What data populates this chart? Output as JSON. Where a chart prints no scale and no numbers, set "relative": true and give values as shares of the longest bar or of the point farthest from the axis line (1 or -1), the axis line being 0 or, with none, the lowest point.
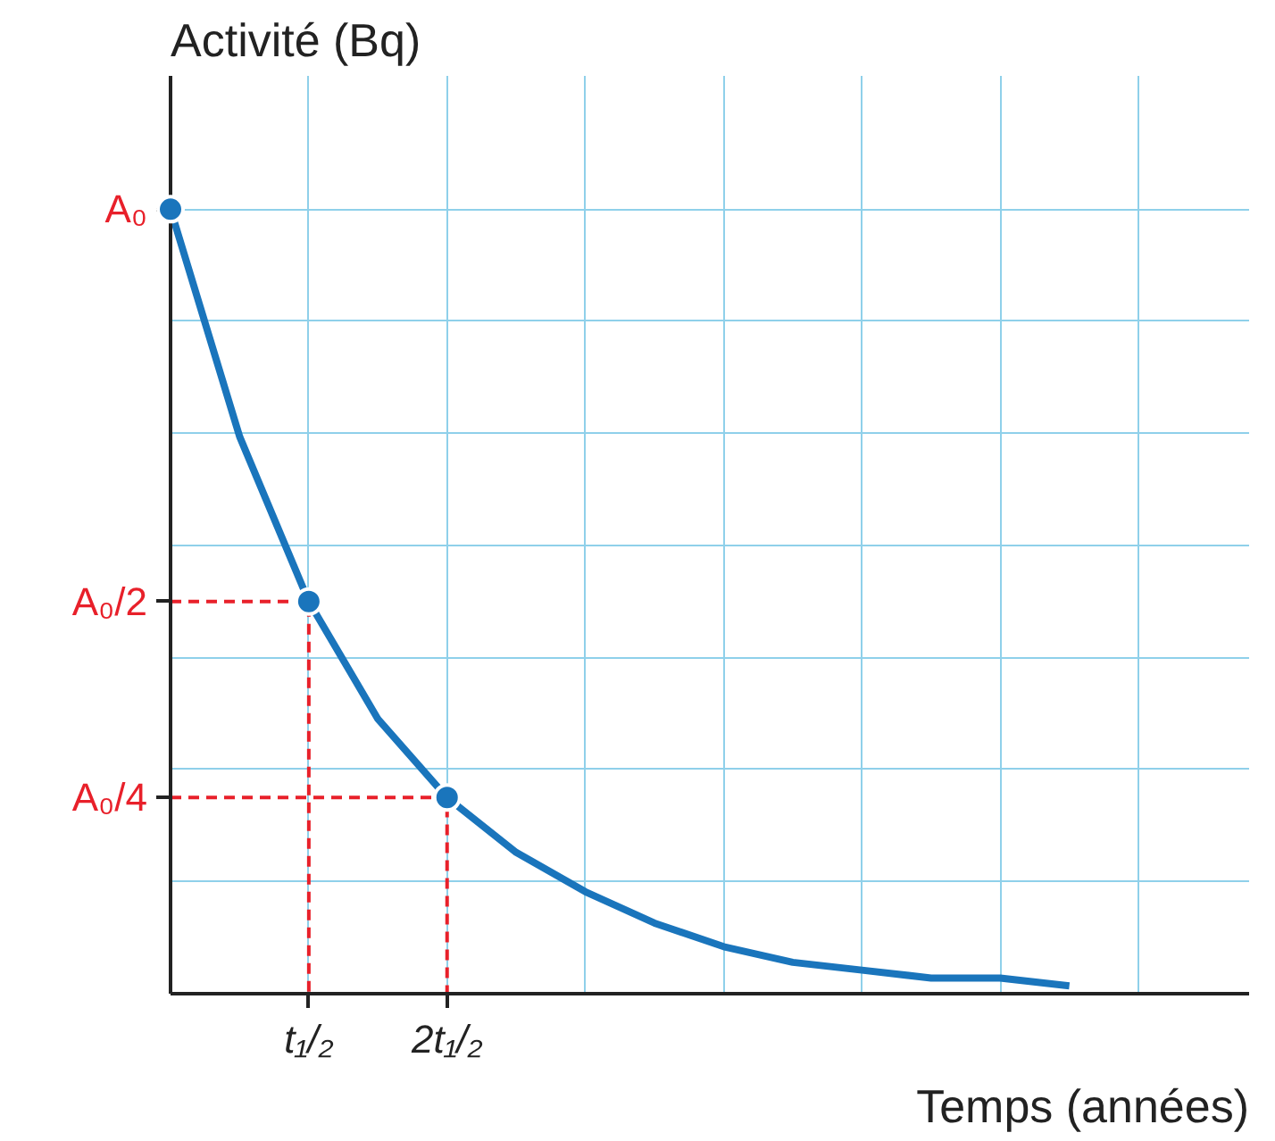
{
  "chart_data": {
    "type": "line",
    "relative": true,
    "ylabel": "Activité (Bq)",
    "xlabel": "Temps (années)",
    "categories": [
      null,
      null,
      "t₁/₂",
      null,
      "2t₁/₂",
      null,
      null,
      null,
      null,
      null,
      null,
      null,
      null,
      null
    ],
    "grid": true,
    "annotations": [
      "A₀",
      "A₀/2",
      "A₀/4"
    ],
    "series": [
      {
        "color": "#1a75bc",
        "values": [
          1,
          0.71,
          0.5,
          0.35,
          0.25,
          0.18,
          0.13,
          0.09,
          0.06,
          0.04,
          0.03,
          0.02,
          0.02,
          0.01
        ]
      },
      {
        "type": "scatter",
        "color": "#1a75bc",
        "marker": "circle",
        "values": [
          1,
          null,
          0.5,
          null,
          0.25,
          null,
          null,
          null,
          null,
          null,
          null,
          null,
          null,
          null
        ]
      }
    ]
  }
}
